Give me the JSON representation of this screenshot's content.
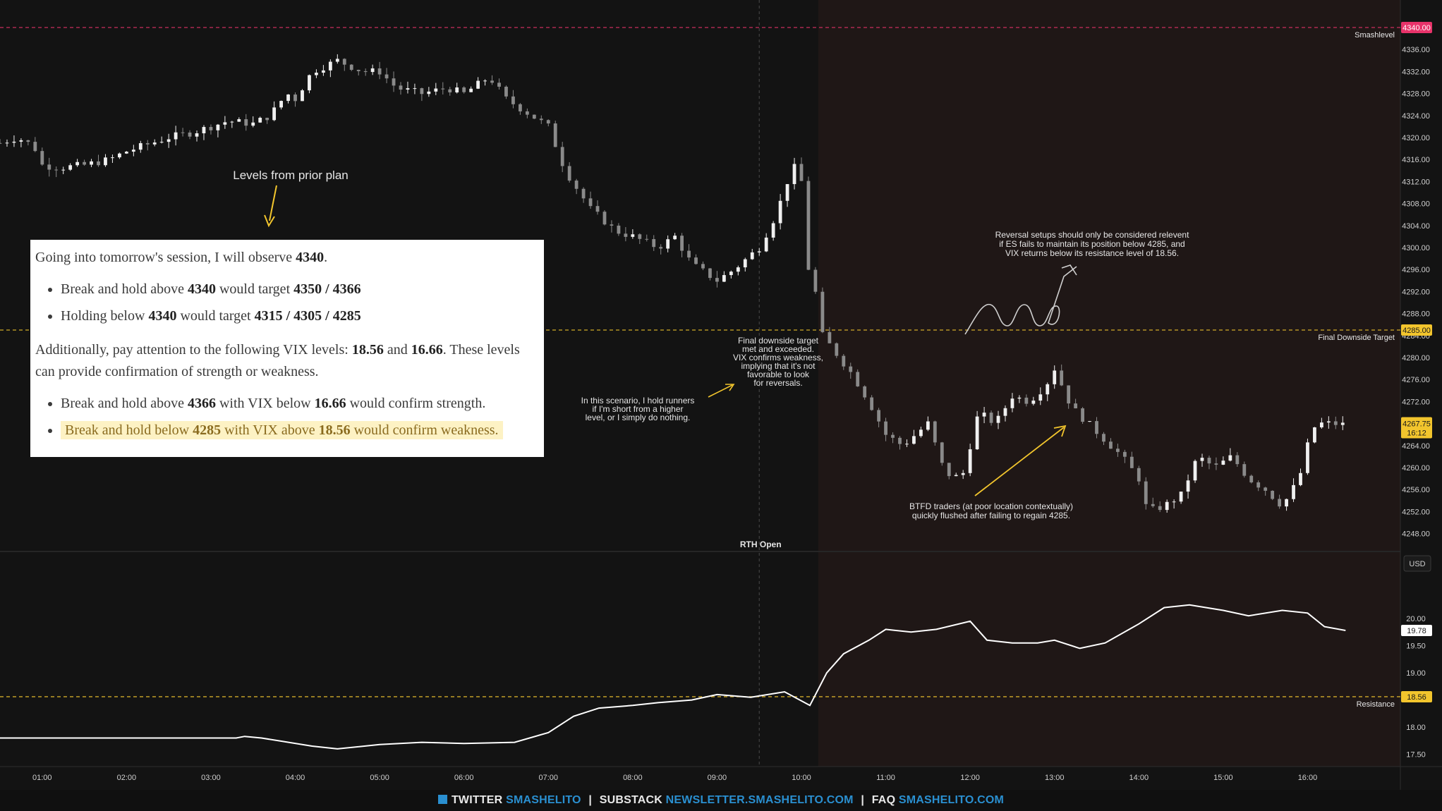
{
  "chart_data": [
    {
      "type": "candlestick",
      "instrument": "ES",
      "ylim": [
        4245,
        4345
      ],
      "y_ticks": [
        "4248.00",
        "4252.00",
        "4256.00",
        "4260.00",
        "4264.00",
        "4268.00",
        "4272.00",
        "4276.00",
        "4280.00",
        "4284.00",
        "4288.00",
        "4292.00",
        "4296.00",
        "4300.00",
        "4304.00",
        "4308.00",
        "4312.00",
        "4316.00",
        "4320.00",
        "4324.00",
        "4328.00",
        "4332.00",
        "4336.00"
      ],
      "x_ticks": [
        "01:00",
        "02:00",
        "03:00",
        "04:00",
        "05:00",
        "06:00",
        "07:00",
        "08:00",
        "09:00",
        "10:00",
        "11:00",
        "12:00",
        "13:00",
        "14:00",
        "15:00",
        "16:00"
      ],
      "x_range_hours": [
        0.5,
        17.1
      ],
      "close_path": [
        [
          0.5,
          4319
        ],
        [
          0.7,
          4320
        ],
        [
          0.9,
          4318.5
        ],
        [
          1.0,
          4315
        ],
        [
          1.2,
          4314.5
        ],
        [
          1.5,
          4315
        ],
        [
          1.8,
          4316
        ],
        [
          2.0,
          4317.5
        ],
        [
          2.2,
          4318.5
        ],
        [
          2.5,
          4320
        ],
        [
          2.8,
          4321
        ],
        [
          3.0,
          4322
        ],
        [
          3.2,
          4323
        ],
        [
          3.5,
          4322.5
        ],
        [
          3.7,
          4324
        ],
        [
          3.9,
          4328
        ],
        [
          4.0,
          4327
        ],
        [
          4.2,
          4332
        ],
        [
          4.5,
          4334
        ],
        [
          4.8,
          4332
        ],
        [
          5.0,
          4332
        ],
        [
          5.2,
          4329
        ],
        [
          5.5,
          4328
        ],
        [
          5.8,
          4329
        ],
        [
          6.0,
          4328
        ],
        [
          6.3,
          4331
        ],
        [
          6.5,
          4327
        ],
        [
          6.7,
          4325
        ],
        [
          7.0,
          4322
        ],
        [
          7.2,
          4314
        ],
        [
          7.5,
          4307
        ],
        [
          7.8,
          4303
        ],
        [
          8.0,
          4302
        ],
        [
          8.3,
          4300
        ],
        [
          8.5,
          4302
        ],
        [
          8.7,
          4297
        ],
        [
          9.0,
          4294
        ],
        [
          9.2,
          4296
        ],
        [
          9.5,
          4300
        ],
        [
          9.7,
          4306
        ],
        [
          9.9,
          4315
        ],
        [
          10.0,
          4312
        ],
        [
          10.05,
          4298
        ],
        [
          10.2,
          4290
        ],
        [
          10.25,
          4284
        ],
        [
          10.4,
          4281
        ],
        [
          10.6,
          4277
        ],
        [
          10.8,
          4272
        ],
        [
          11.0,
          4266
        ],
        [
          11.2,
          4264
        ],
        [
          11.5,
          4268
        ],
        [
          11.7,
          4259
        ],
        [
          11.9,
          4258
        ],
        [
          12.1,
          4270
        ],
        [
          12.3,
          4268
        ],
        [
          12.5,
          4273
        ],
        [
          12.7,
          4272
        ],
        [
          12.9,
          4275
        ],
        [
          13.0,
          4278
        ],
        [
          13.2,
          4271
        ],
        [
          13.4,
          4268
        ],
        [
          13.6,
          4265
        ],
        [
          13.8,
          4262
        ],
        [
          14.0,
          4258
        ],
        [
          14.1,
          4252
        ],
        [
          14.3,
          4253
        ],
        [
          14.5,
          4255
        ],
        [
          14.7,
          4262
        ],
        [
          14.9,
          4260
        ],
        [
          15.1,
          4262
        ],
        [
          15.3,
          4258
        ],
        [
          15.5,
          4256
        ],
        [
          15.7,
          4253
        ],
        [
          15.9,
          4258
        ],
        [
          16.0,
          4264
        ],
        [
          16.1,
          4268
        ],
        [
          16.3,
          4268
        ],
        [
          16.45,
          4267.75
        ]
      ],
      "last_price": "4267.75",
      "time_to_close": "16:12",
      "levels": [
        {
          "name": "Smashlevel",
          "value": 4340.0,
          "label": "4340.00",
          "color": "#e8336a"
        },
        {
          "name": "Final Downside Target",
          "value": 4285.0,
          "label": "4285.00",
          "color": "#f2c52d"
        }
      ],
      "session_marker": {
        "hour": 9.5,
        "label": "RTH Open"
      },
      "rth_shading_start_hour": 10.2
    },
    {
      "type": "line",
      "instrument": "VIX",
      "currency_label": "USD",
      "ylim": [
        17.3,
        21.0
      ],
      "y_ticks": [
        "17.50",
        "18.00",
        "19.00",
        "19.50",
        "20.00"
      ],
      "points": [
        [
          0.5,
          17.8
        ],
        [
          2.0,
          17.8
        ],
        [
          3.3,
          17.8
        ],
        [
          3.4,
          17.83
        ],
        [
          3.6,
          17.8
        ],
        [
          4.2,
          17.65
        ],
        [
          4.5,
          17.6
        ],
        [
          5.0,
          17.68
        ],
        [
          5.5,
          17.72
        ],
        [
          6.0,
          17.7
        ],
        [
          6.6,
          17.72
        ],
        [
          7.0,
          17.9
        ],
        [
          7.3,
          18.2
        ],
        [
          7.6,
          18.35
        ],
        [
          8.0,
          18.4
        ],
        [
          8.3,
          18.45
        ],
        [
          8.7,
          18.5
        ],
        [
          9.0,
          18.6
        ],
        [
          9.4,
          18.55
        ],
        [
          9.8,
          18.65
        ],
        [
          10.1,
          18.4
        ],
        [
          10.3,
          19.0
        ],
        [
          10.5,
          19.35
        ],
        [
          10.8,
          19.6
        ],
        [
          11.0,
          19.8
        ],
        [
          11.3,
          19.75
        ],
        [
          11.6,
          19.8
        ],
        [
          12.0,
          19.95
        ],
        [
          12.2,
          19.6
        ],
        [
          12.5,
          19.55
        ],
        [
          12.8,
          19.55
        ],
        [
          13.0,
          19.6
        ],
        [
          13.3,
          19.45
        ],
        [
          13.6,
          19.55
        ],
        [
          14.0,
          19.9
        ],
        [
          14.3,
          20.2
        ],
        [
          14.6,
          20.25
        ],
        [
          15.0,
          20.15
        ],
        [
          15.3,
          20.05
        ],
        [
          15.7,
          20.15
        ],
        [
          16.0,
          20.1
        ],
        [
          16.2,
          19.85
        ],
        [
          16.45,
          19.78
        ]
      ],
      "last_value": "19.78",
      "levels": [
        {
          "name": "Resistance",
          "value": 18.56,
          "label": "18.56",
          "color": "#f2c52d"
        }
      ]
    }
  ],
  "annotations": {
    "prior_plan_label": "Levels from prior plan",
    "reversal_note": [
      "Reversal setups should only be considered relevent",
      "if ES fails to maintain its position below 4285, and",
      "VIX returns below its resistance level of 18.56."
    ],
    "target_met_note": [
      "Final downside target",
      "met and exceeded.",
      "VIX confirms weakness,",
      "implying that it's not",
      "favorable to look",
      "for reversals."
    ],
    "runners_note": [
      "In this scenario, I hold runners",
      "if I'm short from a higher",
      "level, or I simply do nothing."
    ],
    "btfd_note": [
      "BTFD traders (at poor location contextually)",
      "quickly flushed after failing to regain 4285."
    ]
  },
  "plan": {
    "intro": {
      "pre": "Going into tomorrow's session, I will observe ",
      "level": "4340",
      "post": "."
    },
    "bullets1": [
      {
        "a": "Break and hold above ",
        "b": "4340",
        "c": " would target ",
        "d": "4350 / 4366",
        "e": ""
      },
      {
        "a": "Holding below ",
        "b": "4340",
        "c": " would target ",
        "d": "4315 / 4305 / 4285",
        "e": ""
      }
    ],
    "vix_para": {
      "a": "Additionally, pay attention to the following VIX levels: ",
      "b": "18.56",
      "c": " and ",
      "d": "16.66",
      "e": ". These levels can provide confirmation of strength or weakness."
    },
    "bullets2": [
      {
        "a": "Break and hold above ",
        "b": "4366",
        "c": " with VIX below ",
        "d": "16.66",
        "e": " would confirm strength."
      },
      {
        "a": "Break and hold below ",
        "b": "4285",
        "c": " with VIX above ",
        "d": "18.56",
        "e": " would confirm weakness."
      }
    ]
  },
  "footer": {
    "twitter_label": "TWITTER",
    "twitter_handle": "SMASHELITO",
    "substack_label": "SUBSTACK",
    "substack_url": "NEWSLETTER.SMASHELITO.COM",
    "faq_label": "FAQ",
    "faq_url": "SMASHELITO.COM"
  },
  "colors": {
    "background": "#131313",
    "rth_shade": "#1f1716",
    "candle_up": "#f0f0f0",
    "candle_down": "#8a8a8a",
    "level_yellow": "#f2c52d",
    "level_red": "#e8336a",
    "footer_blue": "#2a8fd0"
  }
}
